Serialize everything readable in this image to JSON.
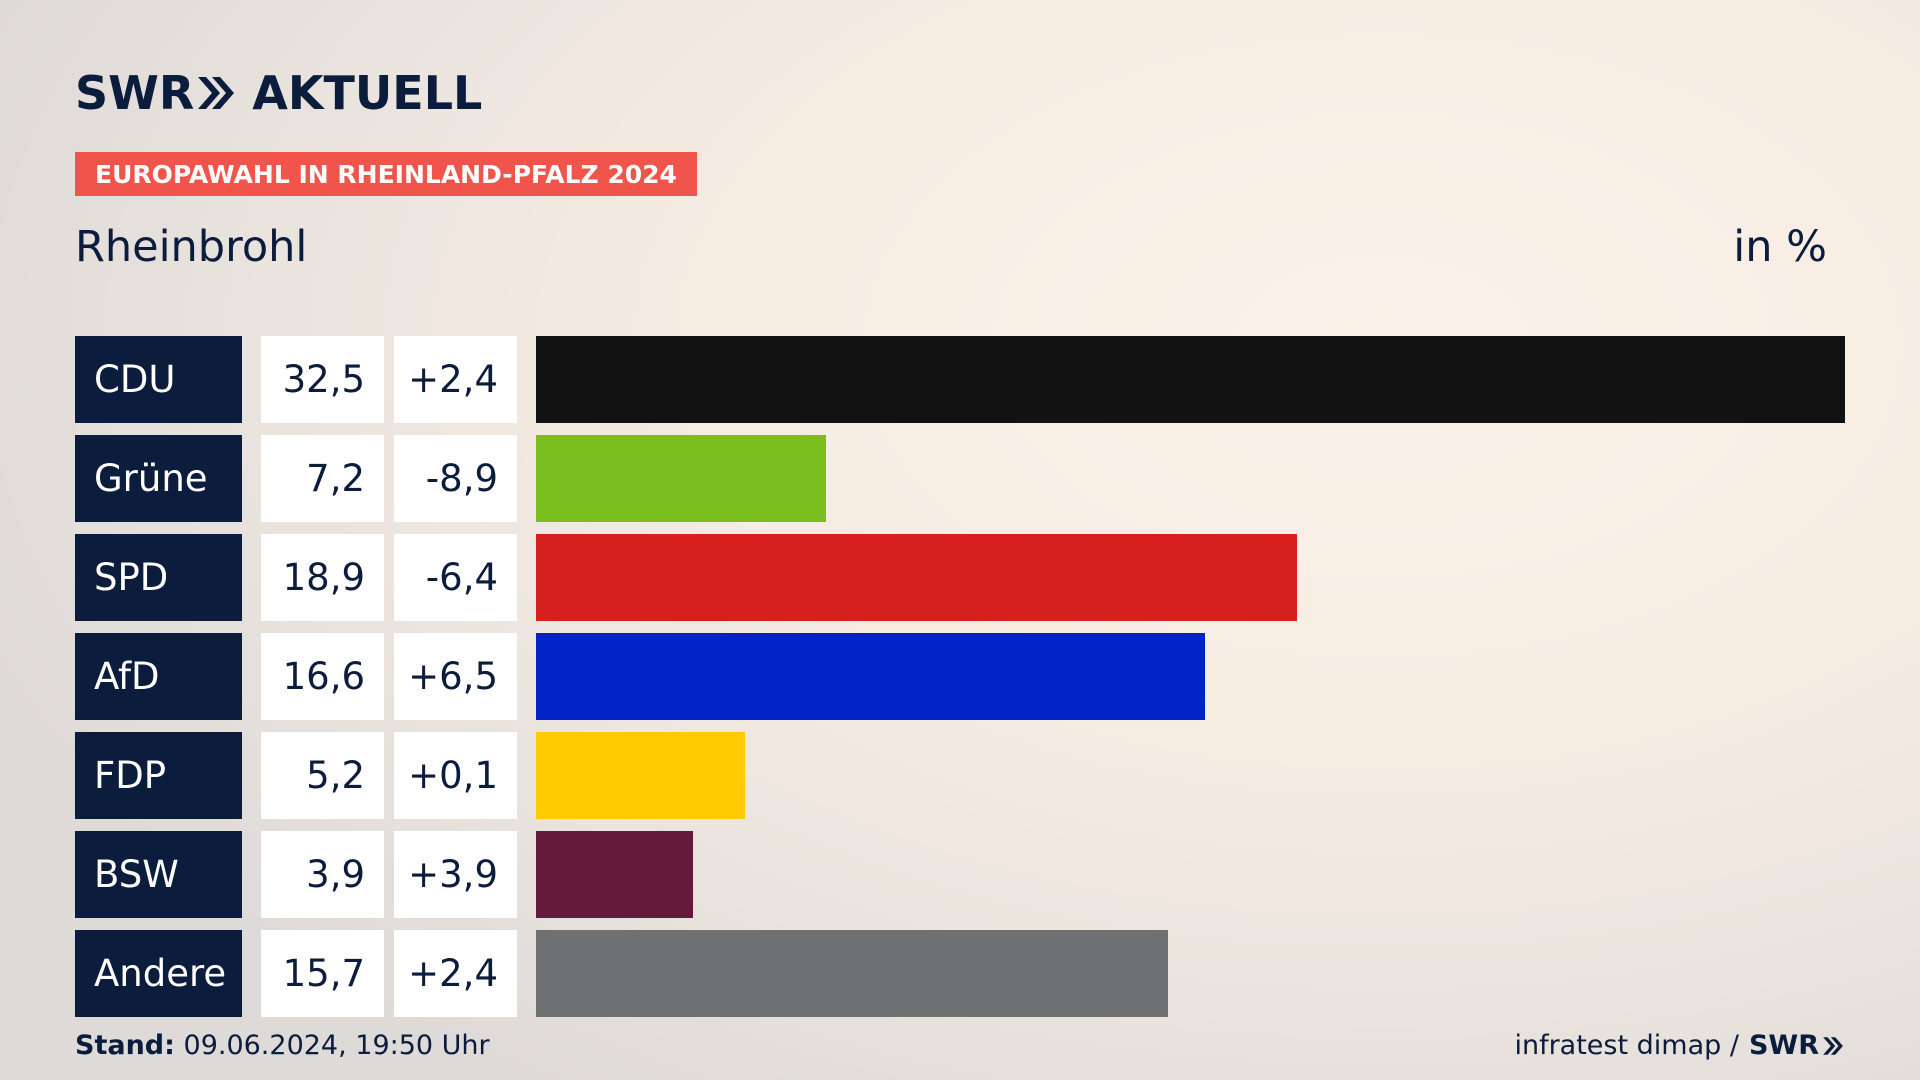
{
  "header": {
    "logo_swr": "SWR",
    "logo_aktuell": "AKTUELL",
    "badge": "EUROPAWAHL IN RHEINLAND-PFALZ 2024",
    "subtitle": "Rheinbrohl",
    "unit": "in %"
  },
  "chart_data": {
    "type": "bar",
    "orientation": "horizontal",
    "categories": [
      "CDU",
      "Grüne",
      "SPD",
      "AfD",
      "FDP",
      "BSW",
      "Andere"
    ],
    "values": [
      32.5,
      7.2,
      18.9,
      16.6,
      5.2,
      3.9,
      15.7
    ],
    "value_labels": [
      "32,5",
      "7,2",
      "18,9",
      "16,6",
      "5,2",
      "3,9",
      "15,7"
    ],
    "diff_labels": [
      "+2,4",
      "-8,9",
      "-6,4",
      "+6,5",
      "+0,1",
      "+3,9",
      "+2,4"
    ],
    "colors": [
      "#121212",
      "#7abf1e",
      "#d61f1f",
      "#0022c7",
      "#fecc00",
      "#661a3b",
      "#6f7072"
    ],
    "xlim": [
      0,
      32.5
    ],
    "title": "Rheinbrohl",
    "xlabel": "",
    "ylabel": "in %",
    "grid": false
  },
  "footer": {
    "stand_label": "Stand:",
    "stand_value": "09.06.2024, 19:50 Uhr",
    "source": "infratest dimap /",
    "source_brand": "SWR"
  },
  "colors": {
    "navy": "#0b1c3d",
    "badge": "#f1544a"
  }
}
